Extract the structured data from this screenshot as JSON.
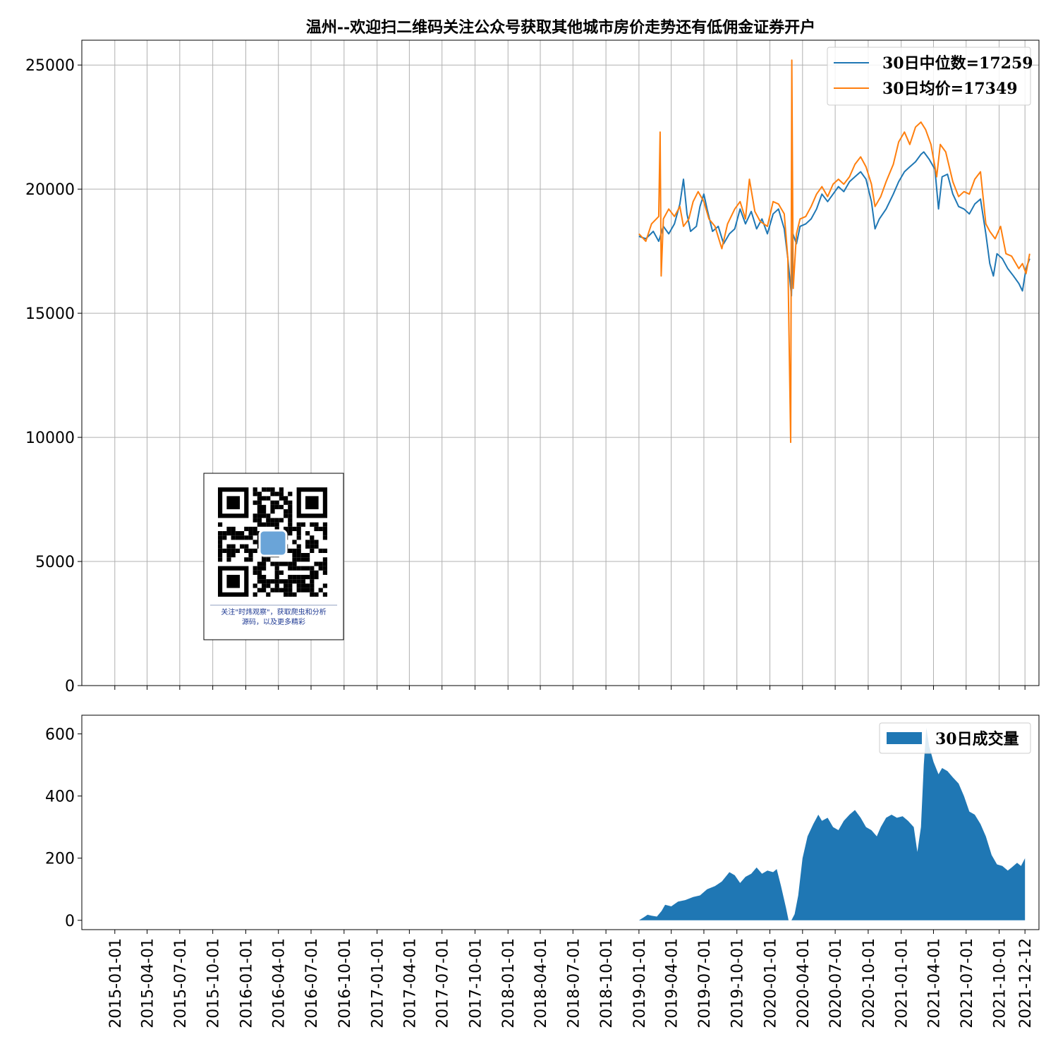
{
  "chart_data": [
    {
      "type": "line",
      "title": "温州--欢迎扫二维码关注公众号获取其他城市房价走势还有低佣金证券开户",
      "xlabel": "",
      "ylabel": "",
      "ylim": [
        0,
        26000
      ],
      "yticks": [
        0,
        5000,
        10000,
        15000,
        20000,
        25000
      ],
      "grid": true,
      "legend_position": "top-right",
      "x_date_range": [
        "2014-10-01",
        "2022-01-20"
      ],
      "series": [
        {
          "name": "30日中位数=17259",
          "color": "#1f77b4",
          "points": [
            [
              "2019-01-01",
              18100
            ],
            [
              "2019-01-20",
              18000
            ],
            [
              "2019-02-10",
              18300
            ],
            [
              "2019-02-25",
              17900
            ],
            [
              "2019-03-10",
              18500
            ],
            [
              "2019-03-25",
              18200
            ],
            [
              "2019-04-10",
              18600
            ],
            [
              "2019-04-25",
              19400
            ],
            [
              "2019-05-05",
              20400
            ],
            [
              "2019-05-15",
              19000
            ],
            [
              "2019-05-25",
              18300
            ],
            [
              "2019-06-10",
              18500
            ],
            [
              "2019-06-20",
              19300
            ],
            [
              "2019-07-01",
              19800
            ],
            [
              "2019-07-10",
              19200
            ],
            [
              "2019-07-25",
              18300
            ],
            [
              "2019-08-10",
              18500
            ],
            [
              "2019-08-25",
              17800
            ],
            [
              "2019-09-10",
              18200
            ],
            [
              "2019-09-25",
              18400
            ],
            [
              "2019-10-10",
              19200
            ],
            [
              "2019-10-25",
              18600
            ],
            [
              "2019-11-10",
              19100
            ],
            [
              "2019-11-25",
              18400
            ],
            [
              "2019-12-10",
              18800
            ],
            [
              "2019-12-25",
              18200
            ],
            [
              "2020-01-10",
              19000
            ],
            [
              "2020-01-25",
              19200
            ],
            [
              "2020-02-10",
              18400
            ],
            [
              "2020-02-20",
              17200
            ],
            [
              "2020-03-01",
              15700
            ],
            [
              "2020-03-05",
              18200
            ],
            [
              "2020-03-15",
              17800
            ],
            [
              "2020-03-25",
              18500
            ],
            [
              "2020-04-10",
              18600
            ],
            [
              "2020-04-25",
              18800
            ],
            [
              "2020-05-10",
              19200
            ],
            [
              "2020-05-25",
              19800
            ],
            [
              "2020-06-10",
              19500
            ],
            [
              "2020-06-25",
              19800
            ],
            [
              "2020-07-10",
              20100
            ],
            [
              "2020-07-25",
              19900
            ],
            [
              "2020-08-10",
              20300
            ],
            [
              "2020-08-25",
              20500
            ],
            [
              "2020-09-10",
              20700
            ],
            [
              "2020-09-25",
              20400
            ],
            [
              "2020-10-10",
              19500
            ],
            [
              "2020-10-20",
              18400
            ],
            [
              "2020-11-01",
              18800
            ],
            [
              "2020-11-20",
              19200
            ],
            [
              "2020-12-10",
              19800
            ],
            [
              "2020-12-25",
              20300
            ],
            [
              "2021-01-10",
              20700
            ],
            [
              "2021-01-25",
              20900
            ],
            [
              "2021-02-10",
              21100
            ],
            [
              "2021-02-25",
              21400
            ],
            [
              "2021-03-05",
              21500
            ],
            [
              "2021-03-20",
              21200
            ],
            [
              "2021-04-05",
              20800
            ],
            [
              "2021-04-15",
              19200
            ],
            [
              "2021-04-25",
              20500
            ],
            [
              "2021-05-10",
              20600
            ],
            [
              "2021-05-25",
              19800
            ],
            [
              "2021-06-10",
              19300
            ],
            [
              "2021-06-25",
              19200
            ],
            [
              "2021-07-10",
              19000
            ],
            [
              "2021-07-25",
              19400
            ],
            [
              "2021-08-10",
              19600
            ],
            [
              "2021-08-25",
              18200
            ],
            [
              "2021-09-05",
              17000
            ],
            [
              "2021-09-15",
              16500
            ],
            [
              "2021-09-25",
              17400
            ],
            [
              "2021-10-10",
              17200
            ],
            [
              "2021-10-25",
              16800
            ],
            [
              "2021-11-10",
              16500
            ],
            [
              "2021-11-25",
              16200
            ],
            [
              "2021-12-05",
              15900
            ],
            [
              "2021-12-15",
              16800
            ],
            [
              "2021-12-25",
              17200
            ]
          ]
        },
        {
          "name": "30日均价=17349",
          "color": "#ff7f0e",
          "points": [
            [
              "2019-01-01",
              18200
            ],
            [
              "2019-01-20",
              17900
            ],
            [
              "2019-02-05",
              18600
            ],
            [
              "2019-02-25",
              18900
            ],
            [
              "2019-03-01",
              22300
            ],
            [
              "2019-03-04",
              16500
            ],
            [
              "2019-03-10",
              18800
            ],
            [
              "2019-03-25",
              19200
            ],
            [
              "2019-04-10",
              18900
            ],
            [
              "2019-04-25",
              19300
            ],
            [
              "2019-05-05",
              18500
            ],
            [
              "2019-05-20",
              18800
            ],
            [
              "2019-06-01",
              19500
            ],
            [
              "2019-06-15",
              19900
            ],
            [
              "2019-07-01",
              19500
            ],
            [
              "2019-07-15",
              18800
            ],
            [
              "2019-08-01",
              18500
            ],
            [
              "2019-08-20",
              17600
            ],
            [
              "2019-09-05",
              18600
            ],
            [
              "2019-09-25",
              19200
            ],
            [
              "2019-10-10",
              19500
            ],
            [
              "2019-10-25",
              18800
            ],
            [
              "2019-11-05",
              20400
            ],
            [
              "2019-11-20",
              19100
            ],
            [
              "2019-12-05",
              18700
            ],
            [
              "2019-12-25",
              18500
            ],
            [
              "2020-01-10",
              19500
            ],
            [
              "2020-01-25",
              19400
            ],
            [
              "2020-02-10",
              19000
            ],
            [
              "2020-02-20",
              17200
            ],
            [
              "2020-02-28",
              9800
            ],
            [
              "2020-03-02",
              25200
            ],
            [
              "2020-03-06",
              16000
            ],
            [
              "2020-03-15",
              18200
            ],
            [
              "2020-03-25",
              18800
            ],
            [
              "2020-04-10",
              18900
            ],
            [
              "2020-04-25",
              19300
            ],
            [
              "2020-05-10",
              19800
            ],
            [
              "2020-05-25",
              20100
            ],
            [
              "2020-06-10",
              19700
            ],
            [
              "2020-06-25",
              20200
            ],
            [
              "2020-07-10",
              20400
            ],
            [
              "2020-07-25",
              20200
            ],
            [
              "2020-08-10",
              20500
            ],
            [
              "2020-08-25",
              21000
            ],
            [
              "2020-09-10",
              21300
            ],
            [
              "2020-09-25",
              20900
            ],
            [
              "2020-10-10",
              20200
            ],
            [
              "2020-10-20",
              19300
            ],
            [
              "2020-11-05",
              19700
            ],
            [
              "2020-11-20",
              20300
            ],
            [
              "2020-12-10",
              21000
            ],
            [
              "2020-12-25",
              21900
            ],
            [
              "2021-01-10",
              22300
            ],
            [
              "2021-01-25",
              21800
            ],
            [
              "2021-02-10",
              22500
            ],
            [
              "2021-02-25",
              22700
            ],
            [
              "2021-03-10",
              22400
            ],
            [
              "2021-03-25",
              21800
            ],
            [
              "2021-04-10",
              20500
            ],
            [
              "2021-04-20",
              21800
            ],
            [
              "2021-05-05",
              21500
            ],
            [
              "2021-05-25",
              20300
            ],
            [
              "2021-06-10",
              19700
            ],
            [
              "2021-06-25",
              19900
            ],
            [
              "2021-07-10",
              19800
            ],
            [
              "2021-07-25",
              20400
            ],
            [
              "2021-08-10",
              20700
            ],
            [
              "2021-08-25",
              18600
            ],
            [
              "2021-09-05",
              18300
            ],
            [
              "2021-09-20",
              18000
            ],
            [
              "2021-10-05",
              18500
            ],
            [
              "2021-10-20",
              17400
            ],
            [
              "2021-11-05",
              17300
            ],
            [
              "2021-11-25",
              16800
            ],
            [
              "2021-12-05",
              17000
            ],
            [
              "2021-12-15",
              16600
            ],
            [
              "2021-12-25",
              17400
            ]
          ]
        }
      ]
    },
    {
      "type": "area",
      "title": "",
      "ylim": [
        -30,
        660
      ],
      "yticks": [
        0,
        200,
        400,
        600
      ],
      "grid": false,
      "legend_position": "top-right",
      "xticks": [
        "2015-01-01",
        "2015-04-01",
        "2015-07-01",
        "2015-10-01",
        "2016-01-01",
        "2016-04-01",
        "2016-07-01",
        "2016-10-01",
        "2017-01-01",
        "2017-04-01",
        "2017-07-01",
        "2017-10-01",
        "2018-01-01",
        "2018-04-01",
        "2018-07-01",
        "2018-10-01",
        "2019-01-01",
        "2019-04-01",
        "2019-07-01",
        "2019-10-01",
        "2020-01-01",
        "2020-04-01",
        "2020-07-01",
        "2020-10-01",
        "2021-01-01",
        "2021-04-01",
        "2021-07-01",
        "2021-10-01",
        "2021-12-12"
      ],
      "series": [
        {
          "name": "30日成交量",
          "color": "#1f77b4",
          "points": [
            [
              "2019-01-01",
              0
            ],
            [
              "2019-01-15",
              10
            ],
            [
              "2019-01-25",
              18
            ],
            [
              "2019-02-05",
              15
            ],
            [
              "2019-02-20",
              12
            ],
            [
              "2019-03-05",
              30
            ],
            [
              "2019-03-15",
              50
            ],
            [
              "2019-04-01",
              45
            ],
            [
              "2019-04-20",
              60
            ],
            [
              "2019-05-10",
              65
            ],
            [
              "2019-06-01",
              75
            ],
            [
              "2019-06-20",
              80
            ],
            [
              "2019-07-10",
              100
            ],
            [
              "2019-08-01",
              110
            ],
            [
              "2019-08-20",
              125
            ],
            [
              "2019-09-10",
              155
            ],
            [
              "2019-09-25",
              145
            ],
            [
              "2019-10-10",
              120
            ],
            [
              "2019-10-25",
              140
            ],
            [
              "2019-11-10",
              150
            ],
            [
              "2019-11-25",
              170
            ],
            [
              "2019-12-10",
              150
            ],
            [
              "2019-12-25",
              160
            ],
            [
              "2020-01-10",
              155
            ],
            [
              "2020-01-20",
              165
            ],
            [
              "2020-02-01",
              110
            ],
            [
              "2020-02-15",
              40
            ],
            [
              "2020-02-22",
              0
            ],
            [
              "2020-03-01",
              0
            ],
            [
              "2020-03-10",
              20
            ],
            [
              "2020-03-20",
              80
            ],
            [
              "2020-04-01",
              200
            ],
            [
              "2020-04-15",
              270
            ],
            [
              "2020-05-01",
              310
            ],
            [
              "2020-05-15",
              340
            ],
            [
              "2020-05-25",
              320
            ],
            [
              "2020-06-10",
              330
            ],
            [
              "2020-06-25",
              300
            ],
            [
              "2020-07-10",
              290
            ],
            [
              "2020-07-25",
              320
            ],
            [
              "2020-08-10",
              340
            ],
            [
              "2020-08-25",
              355
            ],
            [
              "2020-09-10",
              330
            ],
            [
              "2020-09-25",
              300
            ],
            [
              "2020-10-10",
              290
            ],
            [
              "2020-10-25",
              270
            ],
            [
              "2020-11-05",
              300
            ],
            [
              "2020-11-20",
              330
            ],
            [
              "2020-12-05",
              340
            ],
            [
              "2020-12-20",
              330
            ],
            [
              "2021-01-05",
              335
            ],
            [
              "2021-01-20",
              320
            ],
            [
              "2021-02-05",
              300
            ],
            [
              "2021-02-15",
              220
            ],
            [
              "2021-02-25",
              300
            ],
            [
              "2021-03-05",
              500
            ],
            [
              "2021-03-12",
              620
            ],
            [
              "2021-03-20",
              560
            ],
            [
              "2021-04-01",
              510
            ],
            [
              "2021-04-15",
              470
            ],
            [
              "2021-04-25",
              490
            ],
            [
              "2021-05-10",
              480
            ],
            [
              "2021-05-25",
              460
            ],
            [
              "2021-06-10",
              440
            ],
            [
              "2021-06-25",
              400
            ],
            [
              "2021-07-10",
              350
            ],
            [
              "2021-07-25",
              340
            ],
            [
              "2021-08-10",
              310
            ],
            [
              "2021-08-25",
              270
            ],
            [
              "2021-09-10",
              210
            ],
            [
              "2021-09-25",
              180
            ],
            [
              "2021-10-10",
              175
            ],
            [
              "2021-10-25",
              160
            ],
            [
              "2021-11-05",
              170
            ],
            [
              "2021-11-20",
              185
            ],
            [
              "2021-12-01",
              175
            ],
            [
              "2021-12-12",
              200
            ]
          ]
        }
      ]
    }
  ],
  "qr_caption": [
    "关注\"时炜观察\"，获取爬虫和分析",
    "源码，以及更多精彩"
  ]
}
